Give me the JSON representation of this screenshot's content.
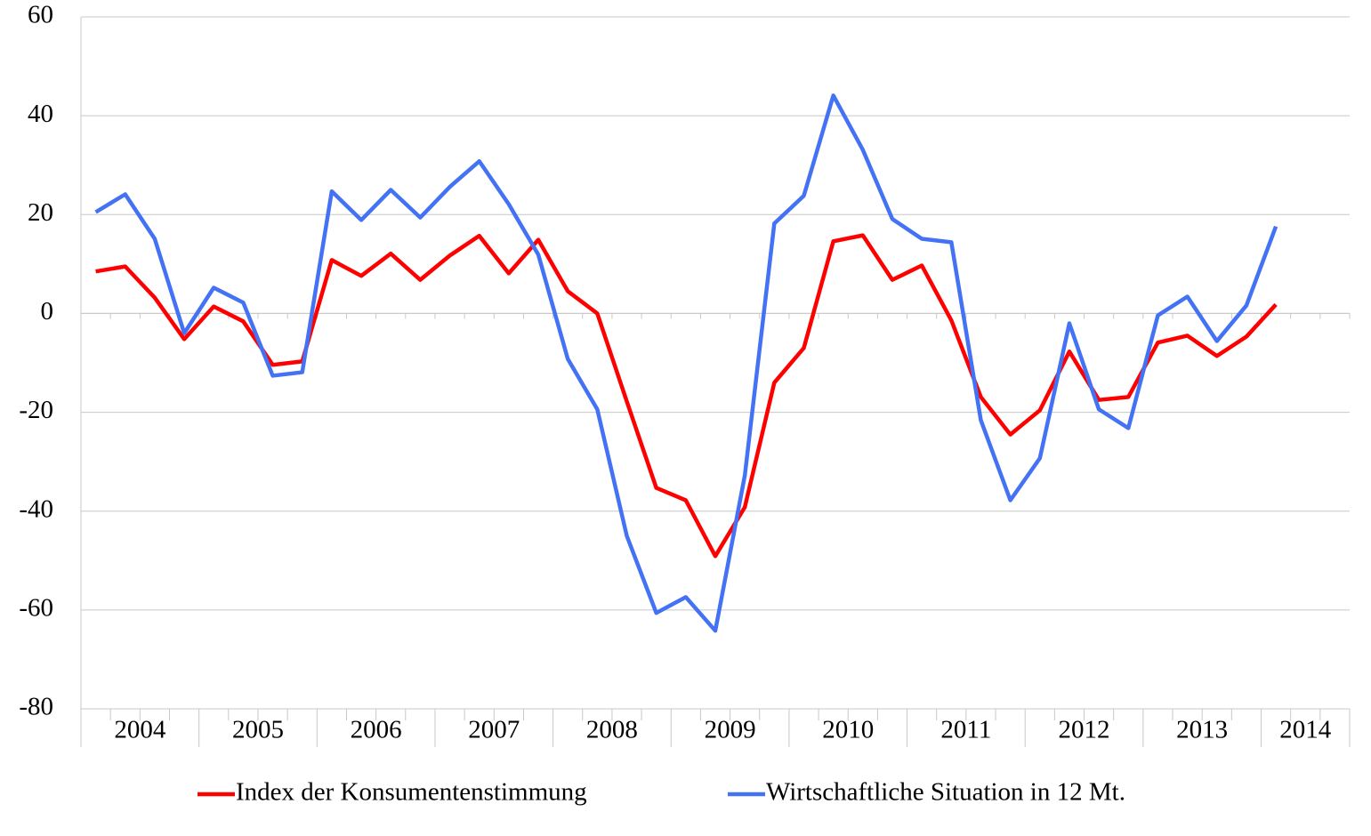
{
  "chart_data": {
    "type": "line",
    "categories": [
      "2004",
      null,
      null,
      null,
      "2005",
      null,
      null,
      null,
      "2006",
      null,
      null,
      null,
      "2007",
      null,
      null,
      null,
      "2008",
      null,
      null,
      null,
      "2009",
      null,
      null,
      null,
      "2010",
      null,
      null,
      null,
      "2011",
      null,
      null,
      null,
      "2012",
      null,
      null,
      null,
      "2013",
      null,
      null,
      null,
      "2014",
      null,
      null
    ],
    "series": [
      {
        "name": "Index der Konsumentenstimmung",
        "color": "#ff0000",
        "values": [
          8.5,
          9.5,
          3.2,
          -5.2,
          1.4,
          -1.6,
          -10.4,
          -9.7,
          10.8,
          7.6,
          12.1,
          6.8,
          11.7,
          15.7,
          8.1,
          14.9,
          4.5,
          0,
          -17.8,
          -35.3,
          -37.8,
          -49.1,
          -39.2,
          -14,
          -7,
          14.6,
          15.8,
          6.8,
          9.7,
          -1.4,
          -16.9,
          -24.5,
          -19.6,
          -7.7,
          -17.5,
          -16.9,
          -5.9,
          -4.5,
          -8.6,
          -4.7,
          1.8,
          null,
          null
        ]
      },
      {
        "name": "Wirtschaftliche Situation in 12 Mt.",
        "color": "#4472f4",
        "values": [
          20.5,
          24.1,
          15.1,
          -4,
          5.2,
          2.2,
          -12.6,
          -11.9,
          24.7,
          18.9,
          25,
          19.4,
          25.6,
          30.8,
          22.1,
          11.9,
          -9.2,
          -19.4,
          -45,
          -60.6,
          -57.4,
          -64.2,
          -32.8,
          18.2,
          23.8,
          44.1,
          33.1,
          19.1,
          15.1,
          14.4,
          -21.6,
          -37.8,
          -29.3,
          -2,
          -19.4,
          -23.2,
          -0.4,
          3.4,
          -5.6,
          1.6,
          17.6,
          null,
          null
        ]
      }
    ],
    "ylim": [
      -80,
      60
    ],
    "yticks": [
      -80,
      -60,
      -40,
      -20,
      0,
      20,
      40,
      60
    ],
    "grid": true,
    "legend": "bottom"
  }
}
